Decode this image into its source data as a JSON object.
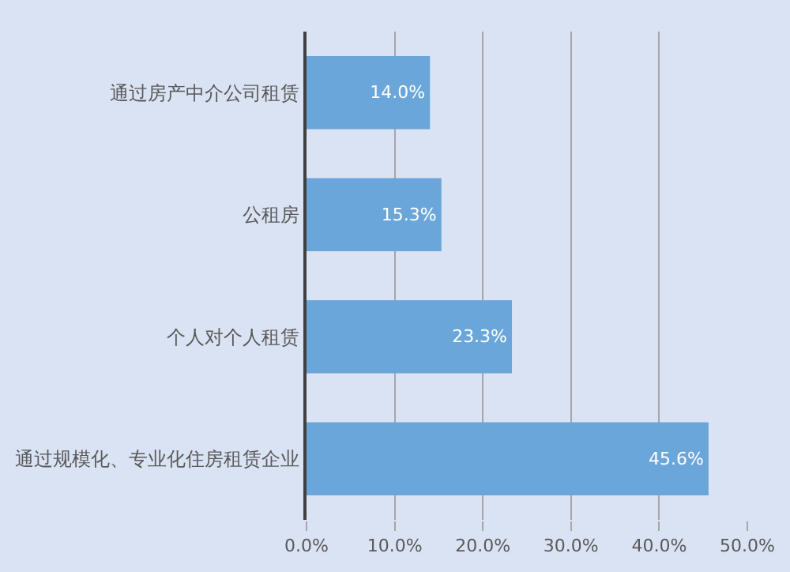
{
  "chart_data": {
    "type": "bar",
    "orientation": "horizontal",
    "categories": [
      "通过房产中介公司租赁",
      "公租房",
      "个人对个人租赁",
      "通过规模化、专业化住房租赁企业"
    ],
    "values": [
      14.0,
      15.3,
      23.3,
      45.6
    ],
    "value_labels": [
      "14.0%",
      "15.3%",
      "23.3%",
      "45.6%"
    ],
    "color": "#6aa6da",
    "xlim": [
      0,
      50
    ],
    "xticks": [
      {
        "value": 0,
        "label": "0.0%"
      },
      {
        "value": 10,
        "label": "10.0%"
      },
      {
        "value": 20,
        "label": "20.0%"
      },
      {
        "value": 30,
        "label": "30.0%"
      },
      {
        "value": 40,
        "label": "40.0%"
      },
      {
        "value": 50,
        "label": "50.0%"
      }
    ],
    "grid": "x",
    "legend": false
  }
}
